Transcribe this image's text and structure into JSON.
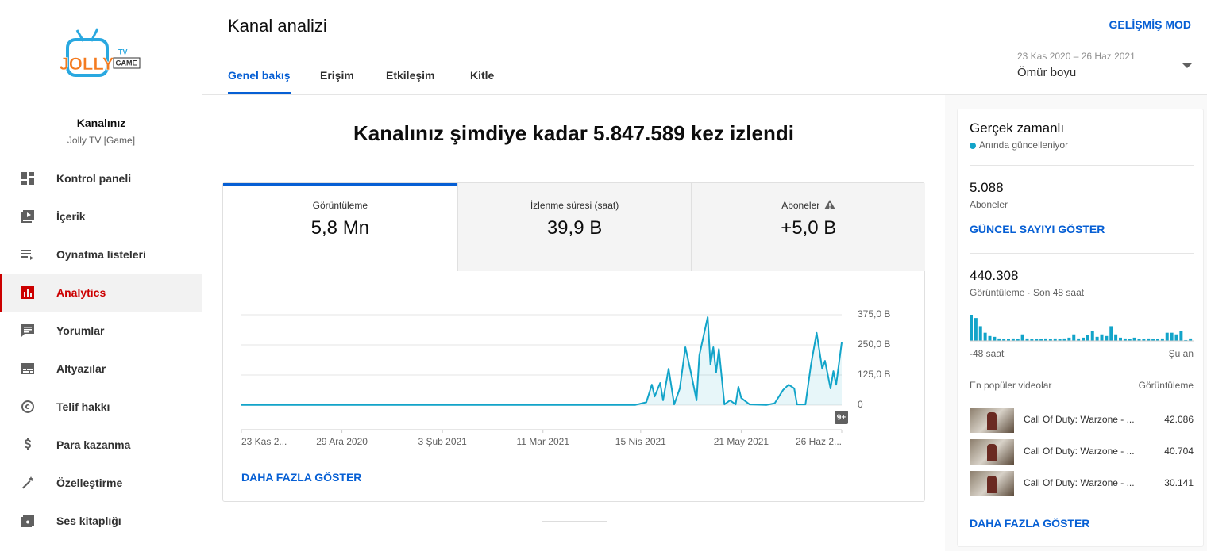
{
  "sidebar": {
    "logo": {
      "main": "JOLLY",
      "tv": "TV",
      "game": "GAME"
    },
    "channel_label": "Kanalınız",
    "channel_name": "Jolly TV [Game]",
    "items": [
      "Kontrol paneli",
      "İçerik",
      "Oynatma listeleri",
      "Analytics",
      "Yorumlar",
      "Altyazılar",
      "Telif hakkı",
      "Para kazanma",
      "Özelleştirme",
      "Ses kitaplığı"
    ],
    "selected": 3
  },
  "header": {
    "title": "Kanal analizi",
    "advanced_mode": "GELİŞMİŞ MOD",
    "tabs": [
      "Genel bakış",
      "Erişim",
      "Etkileşim",
      "Kitle"
    ],
    "selected_tab": 0,
    "date_range": "23 Kas 2020 – 26 Haz 2021",
    "period": "Ömür boyu"
  },
  "overview": {
    "headline": "Kanalınız şimdiye kadar 5.847.589 kez izlendi",
    "metrics": [
      {
        "label": "Görüntüleme",
        "value": "5,8 Mn"
      },
      {
        "label": "İzlenme süresi (saat)",
        "value": "39,9 B"
      },
      {
        "label": "Aboneler",
        "value": "+5,0 B"
      }
    ],
    "badge": "9+",
    "more": "DAHA FAZLA GÖSTER"
  },
  "realtime": {
    "title": "Gerçek zamanlı",
    "status": "Anında güncelleniyor",
    "subscribers": "5.088",
    "subscribers_label": "Aboneler",
    "show_current": "GÜNCEL SAYIYI GÖSTER",
    "views": "440.308",
    "views_label": "Görüntüleme · Son 48 saat",
    "top_videos_label": "En popüler videolar",
    "top_videos_metric": "Görüntüleme",
    "videos": [
      {
        "title": "Call Of Duty: Warzone - ...",
        "views": "42.086"
      },
      {
        "title": "Call Of Duty: Warzone - ...",
        "views": "40.704"
      },
      {
        "title": "Call Of Duty: Warzone - ...",
        "views": "30.141"
      }
    ],
    "more": "DAHA FAZLA GÖSTER"
  },
  "chart_data": [
    {
      "type": "line",
      "color": "#12a4c9",
      "x": [
        "2020-11-23",
        "2020-12-29",
        "2021-02-03",
        "2021-03-11",
        "2021-04-13",
        "2021-04-17",
        "2021-04-19",
        "2021-04-20",
        "2021-04-22",
        "2021-04-23",
        "2021-04-25",
        "2021-04-27",
        "2021-04-29",
        "2021-05-01",
        "2021-05-03",
        "2021-05-05",
        "2021-05-06",
        "2021-05-09",
        "2021-05-10",
        "2021-05-11",
        "2021-05-12",
        "2021-05-13",
        "2021-05-15",
        "2021-05-17",
        "2021-05-19",
        "2021-05-20",
        "2021-05-21",
        "2021-05-24",
        "2021-05-30",
        "2021-06-02",
        "2021-06-05",
        "2021-06-07",
        "2021-06-09",
        "2021-06-10",
        "2021-06-13",
        "2021-06-15",
        "2021-06-17",
        "2021-06-19",
        "2021-06-20",
        "2021-06-22",
        "2021-06-23",
        "2021-06-24",
        "2021-06-26"
      ],
      "values": [
        500,
        500,
        500,
        500,
        500,
        12000,
        85000,
        36000,
        92000,
        20000,
        151000,
        3000,
        69000,
        240000,
        135000,
        20000,
        207000,
        365000,
        168000,
        240000,
        135000,
        233000,
        3000,
        20000,
        3000,
        76000,
        30000,
        3000,
        500,
        8000,
        63000,
        85000,
        69000,
        3000,
        3000,
        168000,
        300000,
        151000,
        184000,
        69000,
        141000,
        85000,
        260000
      ],
      "xlim": [
        "2020-11-23",
        "2021-06-26"
      ],
      "xticks": [
        {
          "value": "2020-11-23",
          "label": "23 Kas 2..."
        },
        {
          "value": "2020-12-29",
          "label": "29 Ara 2020"
        },
        {
          "value": "2021-02-03",
          "label": "3 Şub 2021"
        },
        {
          "value": "2021-03-11",
          "label": "11 Mar 2021"
        },
        {
          "value": "2021-04-15",
          "label": "15 Nis 2021"
        },
        {
          "value": "2021-05-21",
          "label": "21 May 2021"
        },
        {
          "value": "2021-06-26",
          "label": "26 Haz 2..."
        }
      ],
      "ylim": [
        0,
        375000
      ],
      "yticks": [
        0,
        {
          "value": 125000,
          "label": "125,0 B"
        },
        {
          "value": 250000,
          "label": "250,0 B"
        },
        {
          "value": 375000,
          "label": "375,0 B"
        }
      ],
      "grid": true
    },
    {
      "type": "bar",
      "color": "#12a4c9",
      "categories": [
        "-48 saat",
        null,
        null,
        null,
        null,
        null,
        null,
        null,
        null,
        null,
        null,
        null,
        null,
        null,
        null,
        null,
        null,
        null,
        null,
        null,
        null,
        null,
        null,
        null,
        null,
        null,
        null,
        null,
        null,
        null,
        null,
        null,
        null,
        null,
        null,
        null,
        null,
        null,
        null,
        null,
        null,
        null,
        null,
        null,
        null,
        null,
        null,
        "Şu an"
      ],
      "values": [
        32000,
        28000,
        18000,
        10000,
        6000,
        5000,
        3000,
        2000,
        2000,
        3000,
        2000,
        8000,
        3000,
        2000,
        2000,
        2000,
        3000,
        2000,
        3000,
        2000,
        3000,
        4000,
        8000,
        3000,
        4000,
        7000,
        12000,
        5000,
        8000,
        6000,
        18000,
        8000,
        4000,
        3000,
        2000,
        4000,
        2000,
        2000,
        3000,
        2000,
        2000,
        3000,
        10000,
        10000,
        8000,
        12000,
        1000,
        3000
      ]
    }
  ]
}
